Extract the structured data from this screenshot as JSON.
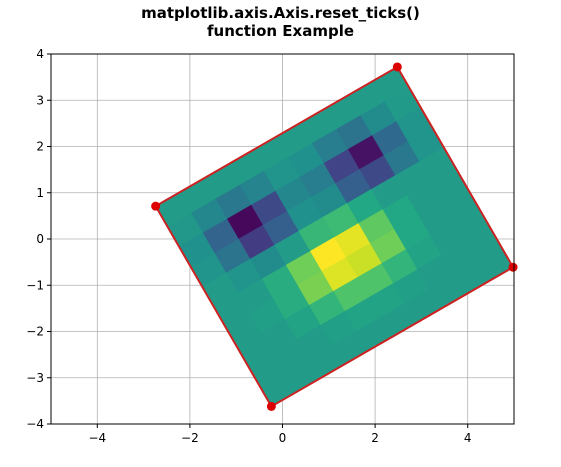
{
  "chart_data": {
    "type": "heatmap",
    "title_lines": [
      "matplotlib.axis.Axis.reset_ticks()",
      "function Example"
    ],
    "xlabel": "",
    "ylabel": "",
    "xlim": [
      -5,
      5
    ],
    "ylim": [
      -4,
      4
    ],
    "xticks": [
      -4,
      -2,
      0,
      2,
      4
    ],
    "yticks": [
      -4,
      -3,
      -2,
      -1,
      0,
      1,
      2,
      3,
      4
    ],
    "grid": true,
    "colormap": "viridis",
    "image_corners": [
      {
        "x": -0.24,
        "y": -3.62
      },
      {
        "x": 4.98,
        "y": -0.61
      },
      {
        "x": 2.48,
        "y": 3.72
      },
      {
        "x": -2.74,
        "y": 0.71
      }
    ],
    "image_values": [
      [
        0.55,
        0.55,
        0.55,
        0.55,
        0.55,
        0.55,
        0.55,
        0.55,
        0.55,
        0.55
      ],
      [
        0.55,
        0.55,
        0.55,
        0.56,
        0.58,
        0.58,
        0.56,
        0.55,
        0.55,
        0.55
      ],
      [
        0.55,
        0.55,
        0.58,
        0.65,
        0.72,
        0.72,
        0.65,
        0.58,
        0.55,
        0.55
      ],
      [
        0.55,
        0.56,
        0.62,
        0.8,
        0.95,
        0.92,
        0.78,
        0.6,
        0.55,
        0.55
      ],
      [
        0.55,
        0.55,
        0.62,
        0.78,
        1.0,
        0.96,
        0.75,
        0.6,
        0.55,
        0.55
      ],
      [
        0.55,
        0.52,
        0.48,
        0.55,
        0.66,
        0.68,
        0.6,
        0.55,
        0.55,
        0.55
      ],
      [
        0.52,
        0.38,
        0.18,
        0.3,
        0.5,
        0.48,
        0.3,
        0.22,
        0.4,
        0.52
      ],
      [
        0.5,
        0.32,
        0.02,
        0.22,
        0.46,
        0.42,
        0.2,
        0.05,
        0.34,
        0.52
      ],
      [
        0.53,
        0.46,
        0.4,
        0.45,
        0.52,
        0.5,
        0.42,
        0.38,
        0.48,
        0.54
      ],
      [
        0.55,
        0.55,
        0.55,
        0.55,
        0.55,
        0.55,
        0.55,
        0.55,
        0.55,
        0.55
      ]
    ],
    "outline_color": "#cc2222",
    "corner_marker_color": "#dd0000"
  }
}
